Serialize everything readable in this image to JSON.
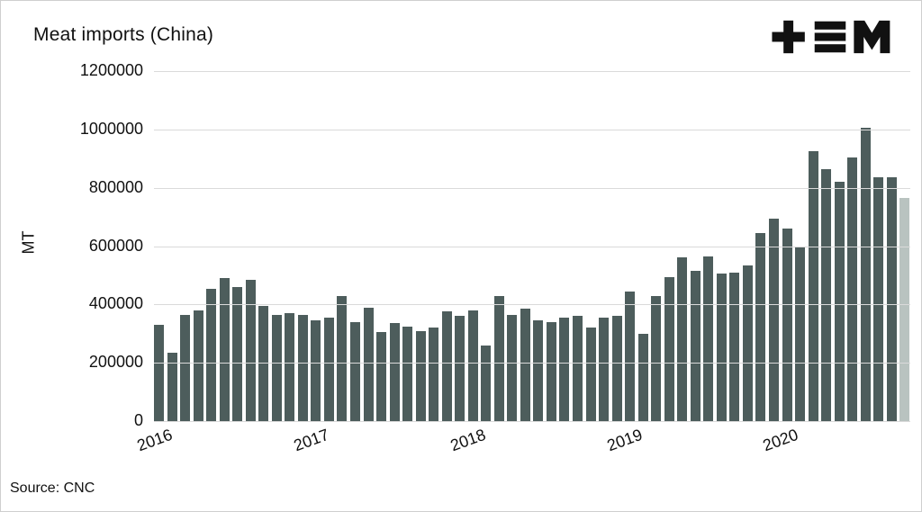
{
  "header": {
    "title": "Meat imports (China)",
    "logo_name": "tem-logo"
  },
  "footer": {
    "source": "Source: CNC"
  },
  "chart_data": {
    "type": "bar",
    "title": "Meat imports (China)",
    "xlabel": "",
    "ylabel": "MT",
    "ylim": [
      0,
      1200000
    ],
    "yticks": [
      0,
      200000,
      400000,
      600000,
      800000,
      1000000,
      1200000
    ],
    "grid": true,
    "legend": "none",
    "bar_color": "#4d5d5c",
    "last_bar_color": "#b9c3c0",
    "gridline_color": "#dadada",
    "xticks": [
      {
        "label": "2016",
        "index": 0
      },
      {
        "label": "2017",
        "index": 12
      },
      {
        "label": "2018",
        "index": 24
      },
      {
        "label": "2019",
        "index": 36
      },
      {
        "label": "2020",
        "index": 48
      }
    ],
    "x": [
      "2016-01",
      "2016-02",
      "2016-03",
      "2016-04",
      "2016-05",
      "2016-06",
      "2016-07",
      "2016-08",
      "2016-09",
      "2016-10",
      "2016-11",
      "2016-12",
      "2017-01",
      "2017-02",
      "2017-03",
      "2017-04",
      "2017-05",
      "2017-06",
      "2017-07",
      "2017-08",
      "2017-09",
      "2017-10",
      "2017-11",
      "2017-12",
      "2018-01",
      "2018-02",
      "2018-03",
      "2018-04",
      "2018-05",
      "2018-06",
      "2018-07",
      "2018-08",
      "2018-09",
      "2018-10",
      "2018-11",
      "2018-12",
      "2019-01",
      "2019-02",
      "2019-03",
      "2019-04",
      "2019-05",
      "2019-06",
      "2019-07",
      "2019-08",
      "2019-09",
      "2019-10",
      "2019-11",
      "2019-12",
      "2020-01",
      "2020-02",
      "2020-03",
      "2020-04",
      "2020-05",
      "2020-06",
      "2020-07",
      "2020-08",
      "2020-09",
      "2020-10"
    ],
    "values": [
      330000,
      235000,
      365000,
      380000,
      455000,
      490000,
      460000,
      485000,
      395000,
      365000,
      370000,
      365000,
      345000,
      355000,
      430000,
      340000,
      390000,
      305000,
      335000,
      325000,
      310000,
      320000,
      375000,
      360000,
      380000,
      260000,
      430000,
      365000,
      385000,
      345000,
      340000,
      355000,
      360000,
      320000,
      355000,
      360000,
      445000,
      300000,
      430000,
      495000,
      560000,
      515000,
      565000,
      505000,
      510000,
      535000,
      645000,
      695000,
      660000,
      600000,
      925000,
      865000,
      820000,
      905000,
      1005000,
      835000,
      835000,
      765000
    ]
  }
}
